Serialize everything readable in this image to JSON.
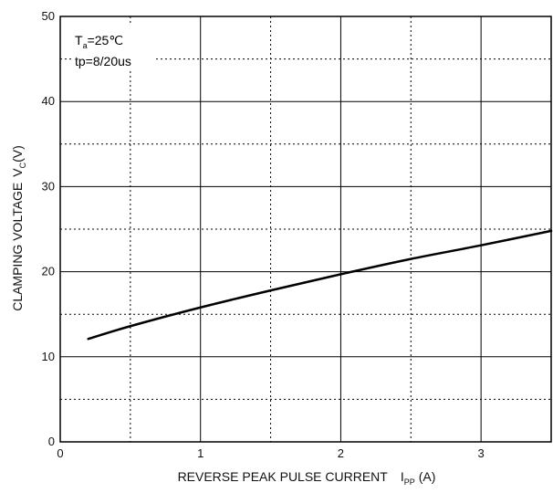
{
  "chart_data": {
    "type": "line",
    "title": "",
    "xlabel": "REVERSE PEAK PULSE CURRENT",
    "xlabel_symbol": "I",
    "xlabel_symbol_sub": "PP",
    "xlabel_unit": "(A)",
    "ylabel": "CLAMPING VOLTAGE",
    "ylabel_symbol": "V",
    "ylabel_symbol_sub": "C",
    "ylabel_unit": "(V)",
    "xlim": [
      0,
      3.5
    ],
    "ylim": [
      0,
      50
    ],
    "x_ticks": [
      0,
      1,
      2,
      3
    ],
    "x_tick_labels": [
      "0",
      "1",
      "2",
      "3"
    ],
    "y_ticks": [
      0,
      10,
      20,
      30,
      40,
      50
    ],
    "y_tick_labels": [
      "0",
      "10",
      "20",
      "30",
      "40",
      "50"
    ],
    "grid": true,
    "grid_style": "solid major lines, dashed half-step lines",
    "annotations": {
      "temperature_symbol": "T",
      "temperature_sub": "a",
      "temperature_value": "=25℃",
      "pulse": "tp=8/20us"
    },
    "series": [
      {
        "x": [
          0.2,
          0.5,
          1.0,
          1.5,
          2.0,
          2.5,
          3.0,
          3.5
        ],
        "y": [
          12.1,
          13.6,
          15.8,
          17.8,
          19.7,
          21.5,
          23.1,
          24.8
        ]
      }
    ],
    "colors": {
      "line": "#000000",
      "grid": "#000000",
      "background": "#ffffff"
    }
  }
}
